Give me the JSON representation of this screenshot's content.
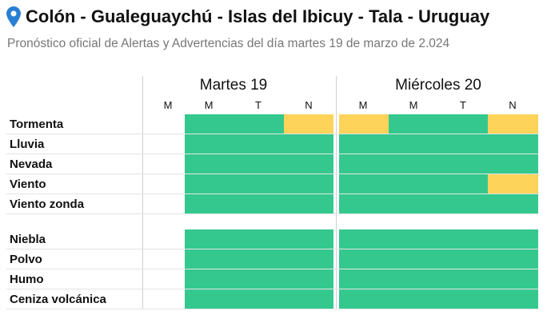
{
  "header": {
    "title": "Colón - Gualeguaychú - Islas del Ibicuy - Tala - Uruguay",
    "subtitle": "Pronóstico oficial de Alertas y Advertencias del día martes 19 de marzo de 2.024",
    "icon": "location-pin-icon"
  },
  "days": [
    {
      "label": "Martes 19",
      "periods": [
        "M",
        "M",
        "T",
        "N"
      ]
    },
    {
      "label": "Miércoles 20",
      "periods": [
        "M",
        "M",
        "T",
        "N"
      ]
    }
  ],
  "legend_colors": {
    "green": "#34c88f",
    "yellow": "#fdd35a"
  },
  "rows": [
    {
      "label": "Tormenta",
      "cells": [
        "none",
        "green",
        "green",
        "yellow",
        "yellow",
        "green",
        "green",
        "yellow"
      ]
    },
    {
      "label": "Lluvia",
      "cells": [
        "none",
        "green",
        "green",
        "green",
        "green",
        "green",
        "green",
        "green"
      ]
    },
    {
      "label": "Nevada",
      "cells": [
        "none",
        "green",
        "green",
        "green",
        "green",
        "green",
        "green",
        "green"
      ]
    },
    {
      "label": "Viento",
      "cells": [
        "none",
        "green",
        "green",
        "green",
        "green",
        "green",
        "green",
        "yellow"
      ]
    },
    {
      "label": "Viento zonda",
      "cells": [
        "none",
        "green",
        "green",
        "green",
        "green",
        "green",
        "green",
        "green"
      ]
    },
    {
      "label": "Niebla",
      "cells": [
        "none",
        "green",
        "green",
        "green",
        "green",
        "green",
        "green",
        "green"
      ]
    },
    {
      "label": "Polvo",
      "cells": [
        "none",
        "green",
        "green",
        "green",
        "green",
        "green",
        "green",
        "green"
      ]
    },
    {
      "label": "Humo",
      "cells": [
        "none",
        "green",
        "green",
        "green",
        "green",
        "green",
        "green",
        "green"
      ]
    },
    {
      "label": "Ceniza volcánica",
      "cells": [
        "none",
        "green",
        "green",
        "green",
        "green",
        "green",
        "green",
        "green"
      ]
    }
  ]
}
